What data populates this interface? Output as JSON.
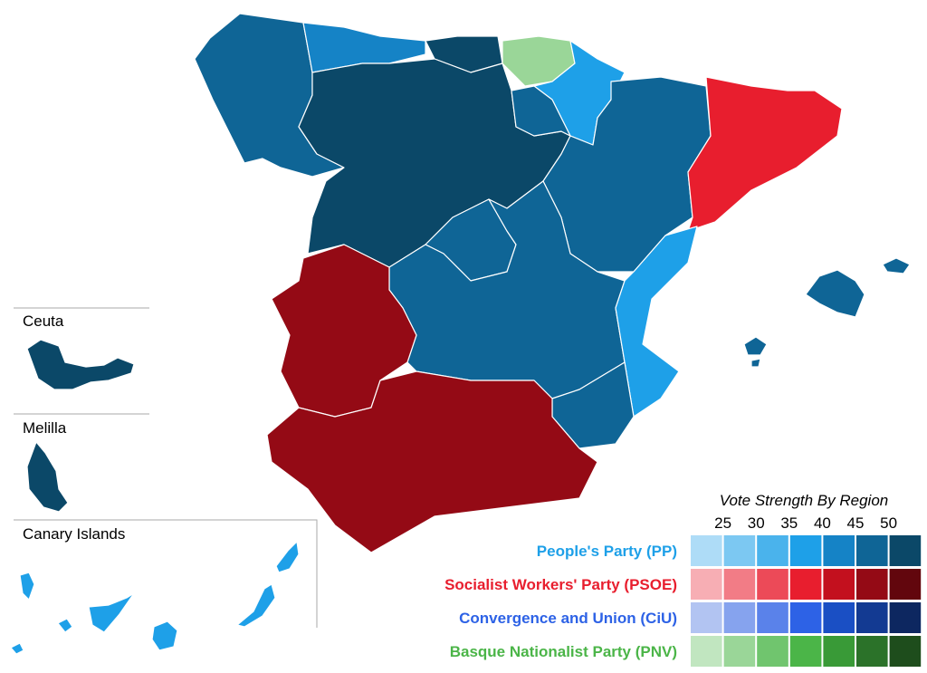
{
  "insets": [
    "Ceuta",
    "Melilla",
    "Canary Islands"
  ],
  "legend": {
    "title": "Vote Strength By Region",
    "scale": [
      25,
      30,
      35,
      40,
      45,
      50
    ],
    "parties": [
      {
        "name": "People's Party (PP)",
        "color": "#1ea0e8",
        "swatches": [
          "#aedcf7",
          "#7cc8f2",
          "#4ab3ec",
          "#1ea0e8",
          "#1583c6",
          "#0f6596",
          "#0b4868"
        ]
      },
      {
        "name": "Socialist Workers' Party (PSOE)",
        "color": "#e81e2e",
        "swatches": [
          "#f7aeb4",
          "#f27c86",
          "#ec4a58",
          "#e81e2e",
          "#c3101e",
          "#940a15",
          "#62060d"
        ]
      },
      {
        "name": "Convergence and Union (CiU)",
        "color": "#2d62e6",
        "swatches": [
          "#b2c4f2",
          "#86a3ee",
          "#5a82ea",
          "#2d62e6",
          "#1a4fc4",
          "#133a92",
          "#0d2760"
        ]
      },
      {
        "name": "Basque Nationalist Party (PNV)",
        "color": "#4bb548",
        "swatches": [
          "#c1e6c0",
          "#9ad698",
          "#70c56e",
          "#4bb548",
          "#399a37",
          "#2b7229",
          "#1e4d1c"
        ]
      }
    ]
  }
}
